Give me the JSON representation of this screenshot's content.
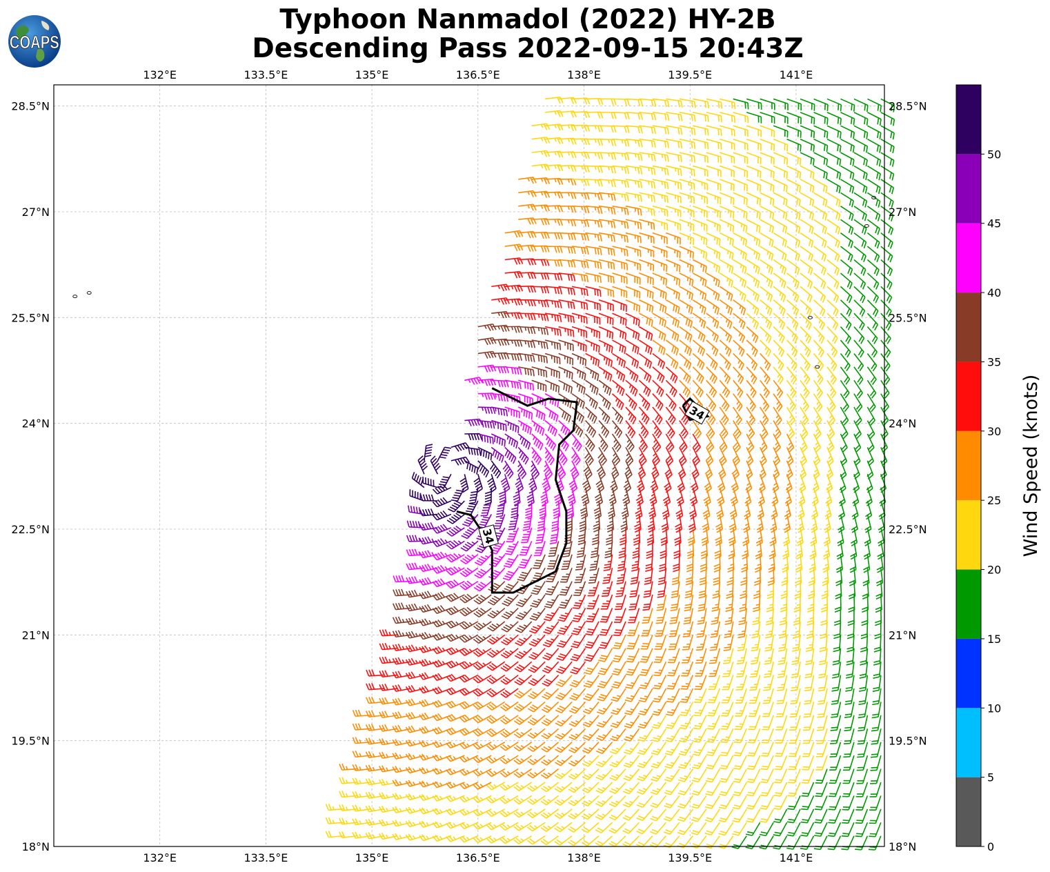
{
  "title": {
    "line1": "Typhoon Nanmadol (2022) HY-2B",
    "line2": "Descending Pass 2022-09-15 20:43Z"
  },
  "logo": {
    "text": "COAPS",
    "icon": "globe-logo"
  },
  "map": {
    "lon_range": [
      130.5,
      142.25
    ],
    "lat_range": [
      18.0,
      28.8
    ],
    "lon_ticks": [
      {
        "value": 132.0,
        "label": "132°E"
      },
      {
        "value": 133.5,
        "label": "133.5°E"
      },
      {
        "value": 135.0,
        "label": "135°E"
      },
      {
        "value": 136.5,
        "label": "136.5°E"
      },
      {
        "value": 138.0,
        "label": "138°E"
      },
      {
        "value": 139.5,
        "label": "139.5°E"
      },
      {
        "value": 141.0,
        "label": "141°E"
      }
    ],
    "lat_ticks": [
      {
        "value": 28.5,
        "label": "28.5°N"
      },
      {
        "value": 27.0,
        "label": "27°N"
      },
      {
        "value": 25.5,
        "label": "25.5°N"
      },
      {
        "value": 24.0,
        "label": "24°N"
      },
      {
        "value": 22.5,
        "label": "22.5°N"
      },
      {
        "value": 21.0,
        "label": "21°N"
      },
      {
        "value": 19.5,
        "label": "19.5°N"
      },
      {
        "value": 18.0,
        "label": "18°N"
      }
    ],
    "grid": true,
    "contour_label": "34"
  },
  "chart_data": {
    "type": "wind-barb map",
    "storm_center": {
      "lon": 136.1,
      "lat": 23.3
    },
    "contour_34kt": [
      {
        "lon": 136.7,
        "lat": 24.5
      },
      {
        "lon": 137.2,
        "lat": 24.25
      },
      {
        "lon": 137.5,
        "lat": 24.35
      },
      {
        "lon": 137.9,
        "lat": 24.3
      },
      {
        "lon": 137.85,
        "lat": 23.9
      },
      {
        "lon": 137.65,
        "lat": 23.7
      },
      {
        "lon": 137.6,
        "lat": 23.2
      },
      {
        "lon": 137.75,
        "lat": 22.75
      },
      {
        "lon": 137.75,
        "lat": 22.3
      },
      {
        "lon": 137.6,
        "lat": 21.9
      },
      {
        "lon": 137.3,
        "lat": 21.75
      },
      {
        "lon": 137.0,
        "lat": 21.6
      },
      {
        "lon": 136.7,
        "lat": 21.6
      },
      {
        "lon": 136.7,
        "lat": 22.2
      },
      {
        "lon": 136.6,
        "lat": 22.4
      },
      {
        "lon": 136.4,
        "lat": 22.7
      },
      {
        "lon": 136.2,
        "lat": 22.75
      }
    ],
    "contour_34kt_east": [
      {
        "lon": 139.4,
        "lat": 24.25
      },
      {
        "lon": 139.5,
        "lat": 24.35
      },
      {
        "lon": 139.75,
        "lat": 24.1
      },
      {
        "lon": 139.5,
        "lat": 24.05
      },
      {
        "lon": 139.4,
        "lat": 24.25
      }
    ],
    "colorbar": {
      "label": "Wind Speed (knots)",
      "ticks": [
        "0",
        "5",
        "10",
        "15",
        "20",
        "25",
        "30",
        "35",
        "40",
        "45",
        "50"
      ],
      "colors": [
        "#595959",
        "#00bfff",
        "#0033ff",
        "#009900",
        "#ffd70f",
        "#ff8c00",
        "#ff0d0d",
        "#883c28",
        "#ff00ff",
        "#8a00b8",
        "#2e0060"
      ],
      "range": [
        0,
        55
      ]
    }
  }
}
